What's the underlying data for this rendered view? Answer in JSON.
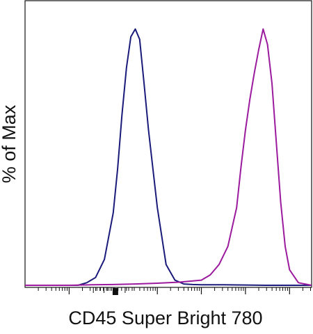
{
  "chart_data": {
    "type": "line",
    "title": "",
    "xlabel": "CD45 Super Bright 780",
    "ylabel": "% of Max",
    "xscale": "log (biexponential display)",
    "xlim": [
      -1,
      5.5
    ],
    "ylim": [
      0,
      100
    ],
    "grid": false,
    "legend": "none",
    "tick_labels_shown": false,
    "series": [
      {
        "color": "#1a1a7a",
        "x": [
          -0.4,
          -0.2,
          0.0,
          0.2,
          0.4,
          0.6,
          0.8,
          1.0,
          1.1,
          1.2,
          1.3,
          1.4,
          1.5,
          1.6,
          1.7,
          1.8,
          2.0,
          2.2,
          2.4,
          2.6,
          2.8,
          3.0,
          3.5,
          4.0,
          4.5,
          5.0,
          5.5
        ],
        "y": [
          0,
          0,
          0,
          0,
          1,
          3,
          10,
          28,
          45,
          66,
          84,
          96,
          99,
          95,
          78,
          60,
          30,
          8,
          2,
          0.5,
          0.3,
          0.2,
          0.2,
          0.1,
          0,
          0,
          0
        ]
      },
      {
        "color": "#9b1a9e",
        "x": [
          -1.0,
          0.0,
          0.5,
          1.0,
          1.5,
          2.0,
          2.5,
          3.0,
          3.2,
          3.4,
          3.6,
          3.8,
          3.9,
          4.0,
          4.1,
          4.2,
          4.3,
          4.4,
          4.5,
          4.6,
          4.7,
          4.8,
          4.9,
          5.0,
          5.2,
          5.5
        ],
        "y": [
          0,
          0,
          0.2,
          0.3,
          0.5,
          0.8,
          1.2,
          2,
          4,
          8,
          15,
          30,
          46,
          60,
          72,
          82,
          91,
          99,
          93,
          78,
          55,
          32,
          15,
          6,
          1,
          0
        ]
      }
    ]
  }
}
